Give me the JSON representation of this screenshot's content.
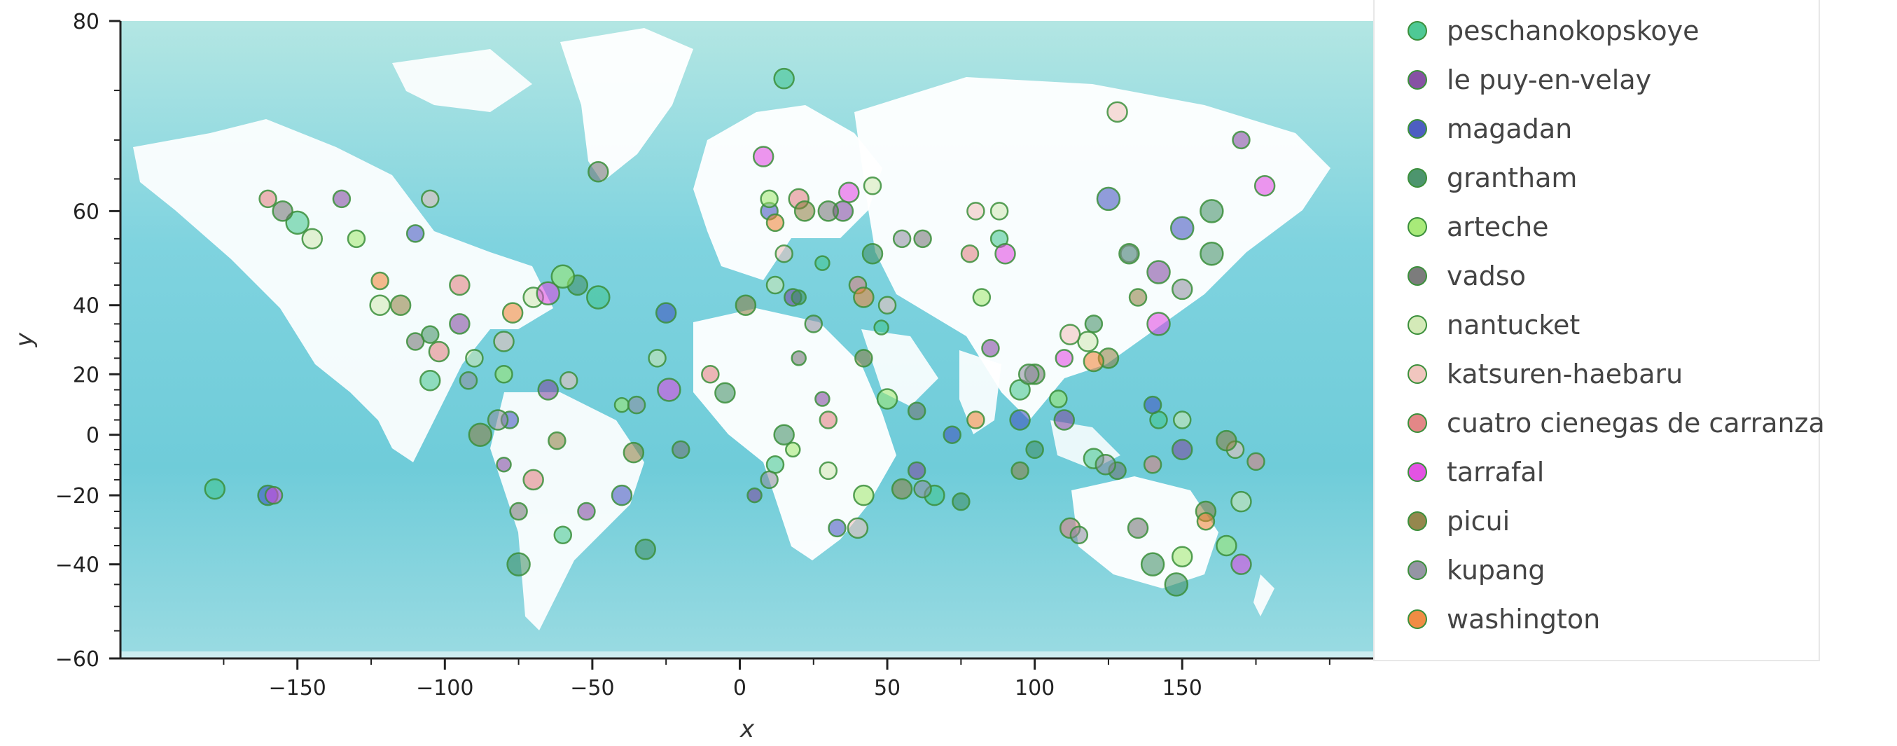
{
  "chart_data": {
    "type": "scatter",
    "title": "",
    "xlabel": "x",
    "ylabel": "y",
    "x_ticks": [
      -150,
      -100,
      -50,
      0,
      50,
      100,
      150
    ],
    "y_ticks": [
      80,
      60,
      40,
      20,
      0,
      -20,
      -40,
      -60
    ],
    "xlim": [
      -210,
      215
    ],
    "ylim": [
      -60,
      80
    ],
    "y_scale": "mercator-latitude",
    "grid": false,
    "background": "world map (ocean and land)",
    "legend_position": "right",
    "series": [
      {
        "name": "peschanokopskoye",
        "color": "#3bc38a",
        "x": [
          -150,
          -105,
          15,
          48,
          95,
          132,
          -60,
          120,
          28,
          -48,
          142,
          66,
          12,
          88,
          -178
        ],
        "y": [
          58,
          18,
          76,
          34,
          15,
          52,
          -32,
          -8,
          50,
          42,
          5,
          -20,
          -10,
          55,
          -18
        ],
        "size": [
          16,
          14,
          14,
          10,
          14,
          12,
          12,
          14,
          10,
          16,
          12,
          14,
          12,
          12,
          14
        ]
      },
      {
        "name": "le puy-en-velay",
        "color": "#7a3f9a",
        "x": [
          -135,
          -65,
          5,
          35,
          85,
          142,
          -52,
          110,
          28,
          150,
          60,
          18,
          -95,
          -80,
          170
        ],
        "y": [
          62,
          15,
          -20,
          60,
          28,
          48,
          -25,
          5,
          12,
          -5,
          -12,
          42,
          35,
          -10,
          70
        ],
        "size": [
          12,
          14,
          10,
          14,
          12,
          16,
          12,
          14,
          10,
          14,
          12,
          12,
          14,
          10,
          12
        ]
      },
      {
        "name": "magadan",
        "color": "#3a4dbb",
        "x": [
          -160,
          -78,
          10,
          125,
          150,
          72,
          95,
          -110,
          -40,
          33,
          140,
          -25
        ],
        "y": [
          -20,
          5,
          60,
          62,
          57,
          0,
          5,
          56,
          -20,
          -30,
          10,
          38
        ],
        "size": [
          14,
          12,
          12,
          16,
          16,
          12,
          14,
          12,
          14,
          12,
          12,
          14
        ]
      },
      {
        "name": "grantham",
        "color": "#3a8a5e",
        "x": [
          -75,
          -55,
          15,
          45,
          140,
          160,
          -105,
          20,
          75,
          120,
          -5,
          160,
          -32,
          100,
          148
        ],
        "y": [
          -40,
          45,
          0,
          52,
          -40,
          60,
          32,
          42,
          -22,
          35,
          14,
          52,
          -36,
          -5,
          -45
        ],
        "size": [
          16,
          14,
          14,
          14,
          16,
          16,
          12,
          10,
          12,
          12,
          14,
          16,
          14,
          12,
          16
        ]
      },
      {
        "name": "arteche",
        "color": "#9ee86a",
        "x": [
          -130,
          -60,
          18,
          50,
          108,
          150,
          -80,
          42,
          82,
          10,
          165,
          -40
        ],
        "y": [
          55,
          47,
          -5,
          12,
          12,
          -38,
          20,
          -20,
          42,
          62,
          -35,
          10
        ],
        "size": [
          12,
          16,
          10,
          14,
          12,
          14,
          12,
          14,
          12,
          12,
          14,
          10
        ]
      },
      {
        "name": "vadso",
        "color": "#6e6e6e",
        "x": [
          -155,
          -75,
          30,
          62,
          128,
          -48,
          20,
          100,
          135,
          -110,
          60,
          -20
        ],
        "y": [
          60,
          -25,
          60,
          55,
          -12,
          66,
          25,
          20,
          -30,
          30,
          8,
          -5
        ],
        "size": [
          14,
          12,
          14,
          12,
          12,
          14,
          10,
          14,
          14,
          12,
          12,
          12
        ]
      },
      {
        "name": "nantucket",
        "color": "#cfe8b0",
        "x": [
          -70,
          -145,
          12,
          45,
          118,
          150,
          -122,
          30,
          88,
          -90,
          170,
          -28
        ],
        "y": [
          42,
          55,
          45,
          64,
          30,
          5,
          40,
          -12,
          60,
          25,
          -22,
          25
        ],
        "size": [
          14,
          14,
          12,
          12,
          14,
          12,
          14,
          12,
          12,
          12,
          14,
          12
        ]
      },
      {
        "name": "katsuren-haebaru",
        "color": "#f0c0b8",
        "x": [
          -80,
          15,
          50,
          128,
          -105,
          40,
          112,
          -58,
          168,
          80
        ],
        "y": [
          30,
          52,
          40,
          73,
          62,
          -30,
          32,
          18,
          -5,
          60
        ],
        "size": [
          14,
          12,
          12,
          14,
          12,
          14,
          14,
          12,
          12,
          12
        ]
      },
      {
        "name": "cuatro cienegas de carranza",
        "color": "#e07a7a",
        "x": [
          -102,
          -70,
          20,
          40,
          112,
          140,
          -95,
          -10,
          78,
          -160,
          30,
          175
        ],
        "y": [
          27,
          -15,
          62,
          45,
          -30,
          -10,
          45,
          20,
          52,
          62,
          5,
          -9
        ],
        "size": [
          14,
          14,
          14,
          12,
          14,
          12,
          14,
          12,
          12,
          12,
          12,
          12
        ]
      },
      {
        "name": "tarrafal",
        "color": "#e040e0",
        "x": [
          -24,
          -65,
          37,
          142,
          178,
          8,
          110,
          -158,
          90,
          170
        ],
        "y": [
          15,
          43,
          63,
          35,
          64,
          68,
          25,
          -20,
          52,
          -40
        ],
        "size": [
          16,
          16,
          14,
          16,
          14,
          14,
          12,
          12,
          14,
          14
        ]
      },
      {
        "name": "picui",
        "color": "#8a7a3a",
        "x": [
          -36,
          -88,
          22,
          55,
          125,
          158,
          -62,
          42,
          95,
          -115,
          2,
          165,
          135
        ],
        "y": [
          -6,
          0,
          60,
          -18,
          25,
          -25,
          -2,
          25,
          -12,
          40,
          40,
          -2,
          42
        ],
        "size": [
          14,
          16,
          14,
          14,
          14,
          14,
          12,
          12,
          12,
          14,
          14,
          14,
          12
        ]
      },
      {
        "name": "kupang",
        "color": "#8a8a9a",
        "x": [
          124,
          -82,
          25,
          62,
          98,
          150,
          -92,
          55,
          10,
          132,
          -35,
          115
        ],
        "y": [
          -10,
          5,
          35,
          -18,
          20,
          44,
          18,
          55,
          -15,
          52,
          10,
          -32
        ],
        "size": [
          14,
          14,
          12,
          12,
          14,
          14,
          12,
          12,
          12,
          14,
          12,
          12
        ]
      },
      {
        "name": "washington",
        "color": "#f08030",
        "x": [
          -77,
          42,
          120,
          158,
          -122,
          12,
          80
        ],
        "y": [
          38,
          42,
          24,
          -28,
          46,
          58,
          5
        ],
        "size": [
          14,
          14,
          14,
          12,
          12,
          12,
          12
        ]
      }
    ]
  }
}
